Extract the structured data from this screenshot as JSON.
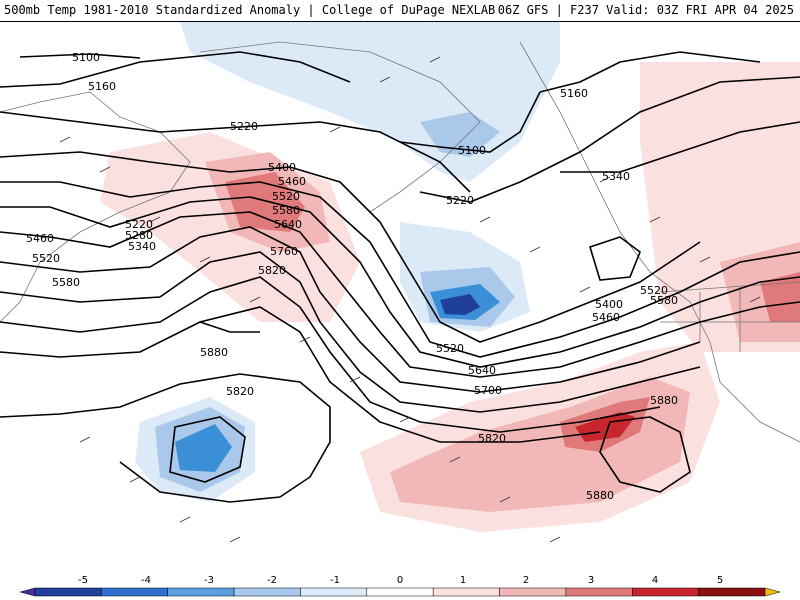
{
  "header": {
    "title_left": "500mb Temp 1981-2010 Standardized Anomaly | College of DuPage NEXLAB",
    "title_right": "06Z GFS | F237 Valid: 03Z FRI APR 04 2025"
  },
  "map": {
    "contour_labels": [
      "5100",
      "5160",
      "5220",
      "5400",
      "5460",
      "5520",
      "5580",
      "5640",
      "5220",
      "5280",
      "5340",
      "5460",
      "5520",
      "5580",
      "5760",
      "5820",
      "5880",
      "5100",
      "5160",
      "5220",
      "5340",
      "5400",
      "5460",
      "5520",
      "5580",
      "5520",
      "5640",
      "5700",
      "5820",
      "5820",
      "5880",
      "5880"
    ],
    "colors": {
      "cold_strong": "#1f3f9a",
      "cold": "#3b8fd6",
      "cold_light": "#a9c8ea",
      "warm_light": "#f2b8b8",
      "warm": "#e07a7a",
      "warm_strong": "#c7262d",
      "contour": "#000000"
    }
  },
  "colorbar": {
    "labels": [
      "-5",
      "-4",
      "-3",
      "-2",
      "-1",
      "0",
      "1",
      "2",
      "3",
      "4",
      "5"
    ],
    "colors": [
      "#4b2aa0",
      "#1f3f9a",
      "#2f6fcf",
      "#5aa0e0",
      "#a9c8ea",
      "#dce9f6",
      "#ffffff",
      "#fbe0e0",
      "#f2b8b8",
      "#e07a7a",
      "#c7262d",
      "#8b1010",
      "#f0c000"
    ]
  }
}
